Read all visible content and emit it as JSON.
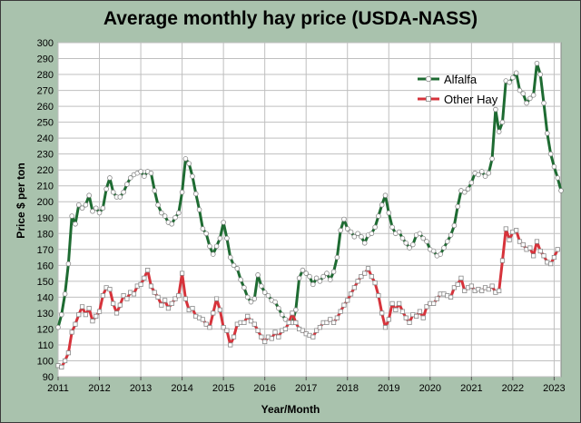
{
  "colors": {
    "background": "#a9c2ad",
    "plot_bg": "#ffffff",
    "grid": "#bfbfbf",
    "alfalfa": "#1e6b32",
    "other_hay": "#d6333b",
    "marker_fill": "#ffffff",
    "marker_stroke": "#888888"
  },
  "chart_data": {
    "type": "line",
    "title": "Average monthly hay price (USDA-NASS)",
    "xlabel": "Year/Month",
    "ylabel": "Price $ per ton",
    "ylim": [
      90,
      300
    ],
    "y_ticks": [
      90,
      100,
      110,
      120,
      130,
      140,
      150,
      160,
      170,
      180,
      190,
      200,
      210,
      220,
      230,
      240,
      250,
      260,
      270,
      280,
      290,
      300
    ],
    "x_ticks": [
      "2011",
      "2012",
      "2013",
      "2014",
      "2015",
      "2016",
      "2017",
      "2018",
      "2019",
      "2020",
      "2021",
      "2022",
      "2023"
    ],
    "start_year": 2011,
    "months_per_year": 12,
    "grid": true,
    "legend_position": "top-right",
    "series": [
      {
        "name": "Alfalfa",
        "color": "#1e6b32",
        "values": [
          121,
          129,
          142,
          161,
          191,
          186,
          198,
          196,
          198,
          204,
          194,
          196,
          193,
          196,
          208,
          215,
          206,
          203,
          203,
          206,
          211,
          215,
          217,
          218,
          219,
          216,
          219,
          218,
          207,
          198,
          193,
          191,
          187,
          186,
          190,
          193,
          206,
          227,
          224,
          216,
          205,
          195,
          183,
          180,
          172,
          167,
          172,
          177,
          187,
          177,
          165,
          160,
          158,
          151,
          146,
          140,
          137,
          139,
          154,
          147,
          143,
          141,
          138,
          137,
          133,
          129,
          126,
          125,
          124,
          132,
          152,
          157,
          155,
          153,
          148,
          152,
          150,
          153,
          155,
          151,
          156,
          165,
          182,
          189,
          183,
          181,
          178,
          180,
          178,
          174,
          179,
          180,
          184,
          191,
          198,
          204,
          193,
          184,
          180,
          181,
          177,
          174,
          171,
          173,
          179,
          180,
          177,
          175,
          170,
          169,
          166,
          167,
          171,
          175,
          179,
          185,
          197,
          207,
          206,
          208,
          212,
          218,
          217,
          219,
          216,
          218,
          227,
          258,
          244,
          250,
          276,
          275,
          278,
          281,
          270,
          268,
          262,
          265,
          267,
          287,
          280,
          262,
          243,
          230,
          222,
          215,
          207
        ]
      },
      {
        "name": "Other Hay",
        "color": "#d6333b",
        "values": [
          97,
          96,
          100,
          105,
          118,
          123,
          129,
          134,
          129,
          133,
          125,
          128,
          131,
          141,
          146,
          145,
          136,
          130,
          135,
          141,
          139,
          143,
          142,
          147,
          148,
          152,
          157,
          147,
          143,
          140,
          135,
          138,
          133,
          136,
          139,
          141,
          155,
          139,
          132,
          133,
          128,
          127,
          126,
          123,
          121,
          130,
          139,
          132,
          121,
          119,
          110,
          115,
          123,
          124,
          124,
          128,
          125,
          123,
          119,
          115,
          112,
          115,
          114,
          118,
          115,
          119,
          120,
          124,
          130,
          124,
          120,
          119,
          117,
          116,
          115,
          119,
          121,
          124,
          124,
          126,
          124,
          127,
          131,
          135,
          138,
          142,
          146,
          150,
          153,
          155,
          158,
          153,
          149,
          141,
          130,
          121,
          126,
          136,
          132,
          136,
          131,
          127,
          124,
          129,
          128,
          131,
          127,
          134,
          136,
          136,
          139,
          142,
          142,
          141,
          140,
          146,
          148,
          152,
          144,
          146,
          147,
          144,
          145,
          144,
          146,
          145,
          147,
          143,
          144,
          163,
          183,
          176,
          181,
          182,
          175,
          173,
          170,
          171,
          166,
          175,
          169,
          166,
          162,
          161,
          165,
          170
        ]
      }
    ]
  }
}
